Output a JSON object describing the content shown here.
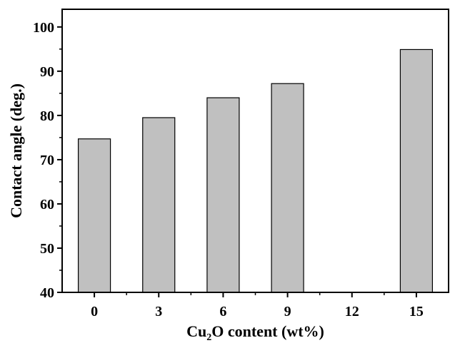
{
  "chart_data": {
    "type": "bar",
    "categories": [
      "0",
      "3",
      "6",
      "9",
      "12",
      "15"
    ],
    "values": [
      74.7,
      79.5,
      84.0,
      87.2,
      null,
      94.9
    ],
    "xlabel": {
      "prefix": "Cu",
      "subscript": "2",
      "suffix": "O content (wt%)"
    },
    "ylabel": "Contact angle (deg.)",
    "ylim": [
      40,
      104
    ],
    "yticks": [
      40,
      50,
      60,
      70,
      80,
      90,
      100
    ],
    "grid": false,
    "legend": "none",
    "colors": {
      "bar_fill": "#c0c0c0",
      "bar_stroke": "#000000",
      "axis": "#000000"
    }
  }
}
